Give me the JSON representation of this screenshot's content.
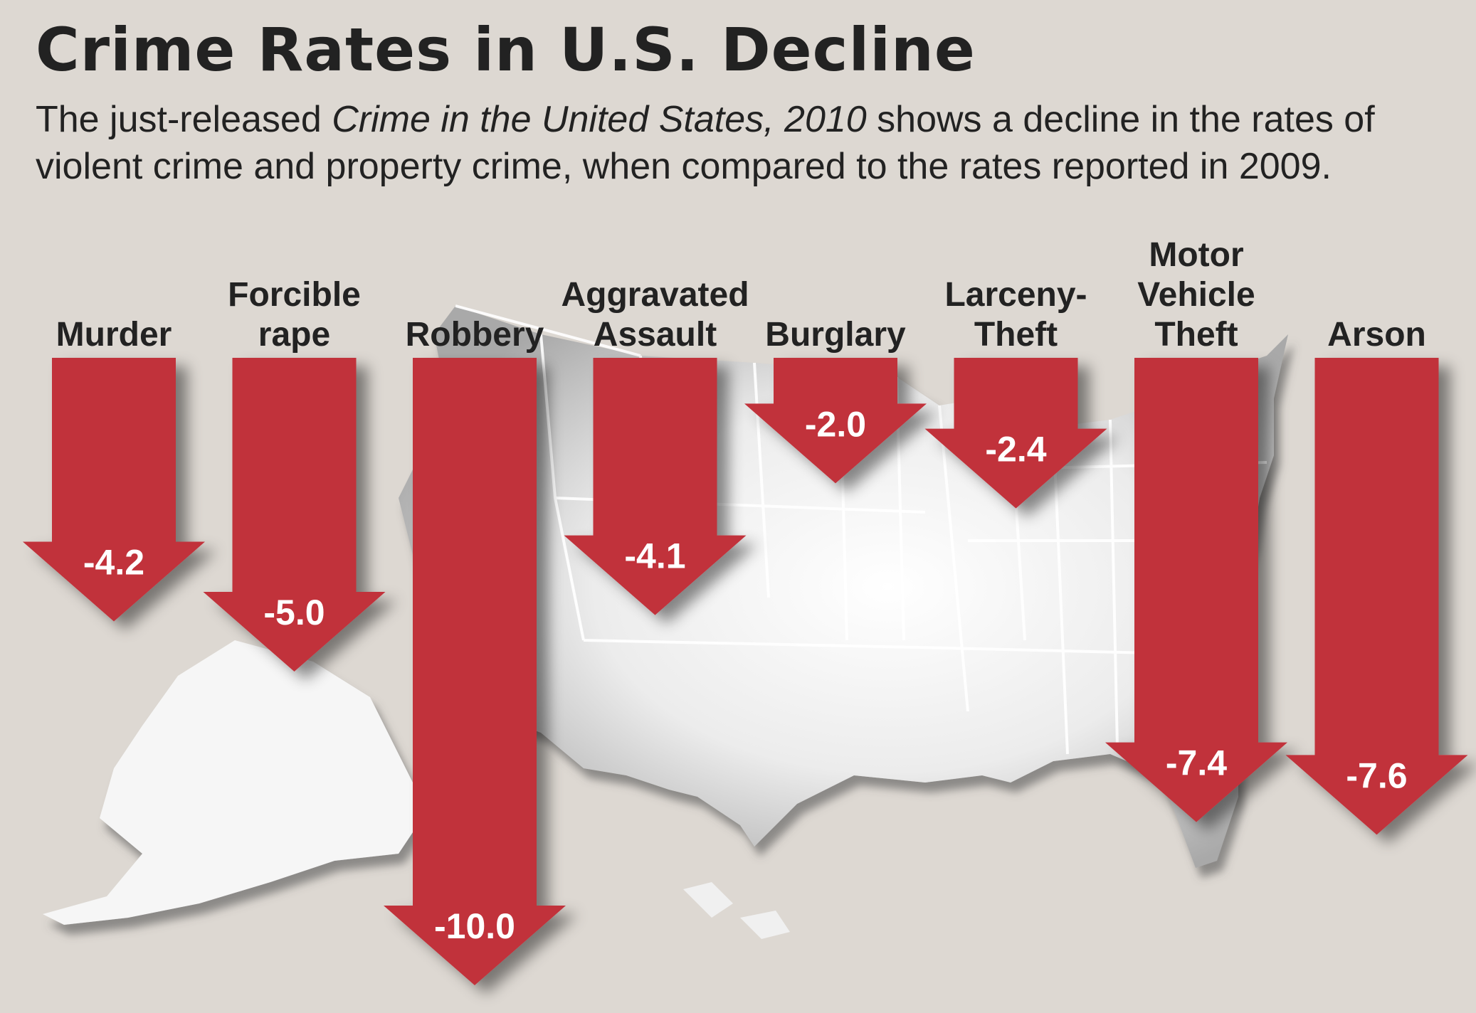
{
  "header": {
    "title": "Crime Rates in U.S. Decline",
    "subtitle_before": "The just-released ",
    "subtitle_italic": "Crime in the United States, 2010",
    "subtitle_after": " shows a decline in the rates of violent crime and property crime, when compared to the rates reported in 2009."
  },
  "chart_data": {
    "type": "bar",
    "orientation": "downward-arrows",
    "categories": [
      [
        "Murder"
      ],
      [
        "Forcible",
        "rape"
      ],
      [
        "Robbery"
      ],
      [
        "Aggravated",
        "Assault"
      ],
      [
        "Burglary"
      ],
      [
        "Larceny-",
        "Theft"
      ],
      [
        "Motor",
        "Vehicle",
        "Theft"
      ],
      [
        "Arson"
      ]
    ],
    "values": [
      -4.2,
      -5.0,
      -10.0,
      -4.1,
      -2.0,
      -2.4,
      -7.4,
      -7.6
    ],
    "value_labels": [
      "-4.2",
      "-5.0",
      "-10.0",
      "-4.1",
      "-2.0",
      "-2.4",
      "-7.4",
      "-7.6"
    ],
    "ylim": [
      -10.0,
      0
    ],
    "bar_color": "#c1313a",
    "label_color": "#ffffff",
    "background_color": "#ddd8d2",
    "background_image": "map-of-united-states",
    "grid": false,
    "legend": "none"
  }
}
